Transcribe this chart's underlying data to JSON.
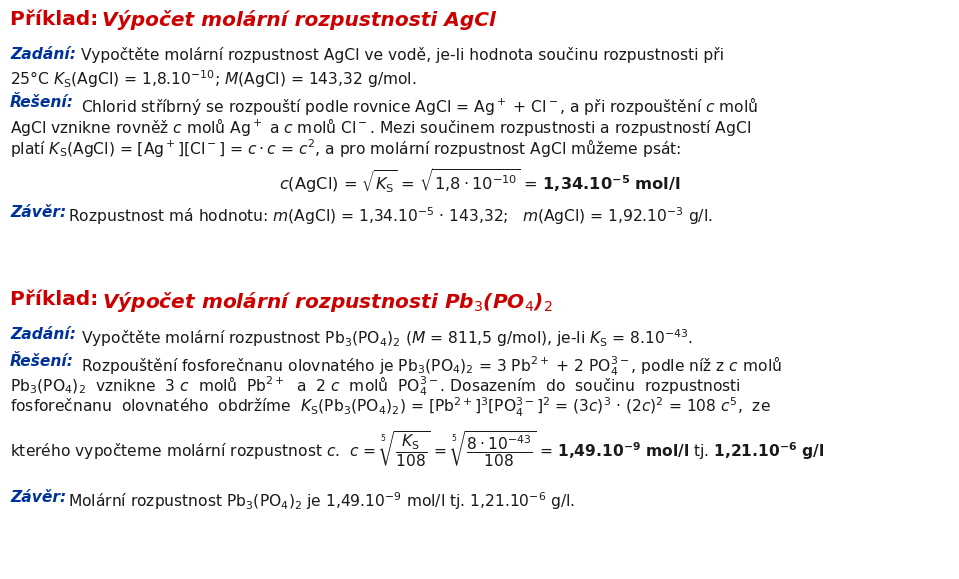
{
  "bg_color": "#ffffff",
  "red_color": "#cc0000",
  "blue_color": "#003399",
  "black_color": "#1a1a1a",
  "title_fs": 14.5,
  "body_fs": 11.2,
  "fig_w": 9.59,
  "fig_h": 5.79,
  "dpi": 100
}
